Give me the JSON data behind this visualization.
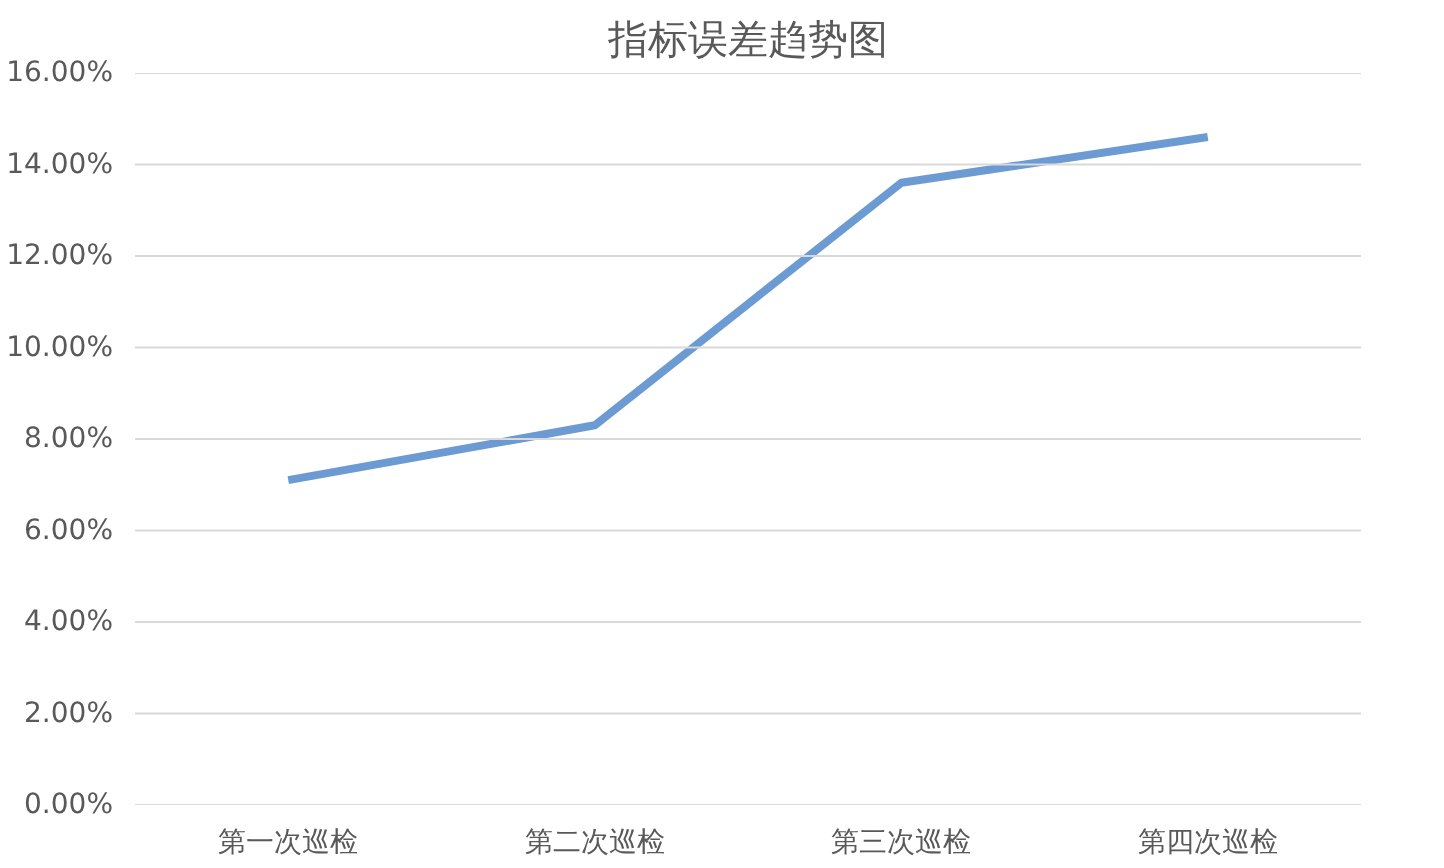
{
  "chart_data": {
    "type": "line",
    "title": "指标误差趋势图",
    "categories": [
      "第一次巡检",
      "第二次巡检",
      "第三次巡检",
      "第四次巡检"
    ],
    "series": [
      {
        "color": "#6b9bd2",
        "values": [
          7.1,
          8.3,
          13.6,
          14.6
        ]
      }
    ],
    "ylim": [
      0,
      16
    ],
    "yticks": [
      {
        "value": 0,
        "label": "0.00%"
      },
      {
        "value": 2,
        "label": "2.00%"
      },
      {
        "value": 4,
        "label": "4.00%"
      },
      {
        "value": 6,
        "label": "6.00%"
      },
      {
        "value": 8,
        "label": "8.00%"
      },
      {
        "value": 10,
        "label": "10.00%"
      },
      {
        "value": 12,
        "label": "12.00%"
      },
      {
        "value": 14,
        "label": "14.00%"
      },
      {
        "value": 16,
        "label": "16.00%"
      }
    ],
    "grid": "y",
    "marker": "none",
    "line_style": "solid"
  }
}
